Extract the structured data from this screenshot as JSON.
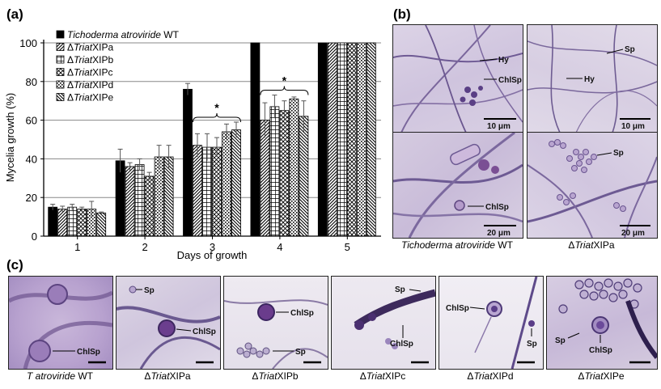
{
  "panels": {
    "a": "(a)",
    "b": "(b)",
    "c": "(c)"
  },
  "chart_data": {
    "type": "bar",
    "title": "",
    "xlabel": "Days of growth",
    "ylabel": "Mycelia growth (%)",
    "ylim": [
      0,
      100
    ],
    "yticks": [
      0,
      20,
      40,
      60,
      80,
      100
    ],
    "grid": true,
    "legend_position": "top-left",
    "categories": [
      "1",
      "2",
      "3",
      "4",
      "5"
    ],
    "series": [
      {
        "name_italic": "Tichoderma atroviride",
        "name_rest": " WT",
        "pattern": "solid",
        "values": [
          15,
          39,
          76,
          100,
          100
        ],
        "errors": [
          1.5,
          6,
          3,
          0,
          0
        ]
      },
      {
        "name_prefix": "Δ",
        "name_italic": "Triat",
        "name_rest": "XIPa",
        "pattern": "diag",
        "values": [
          14,
          36,
          47,
          60,
          100
        ],
        "errors": [
          1.5,
          2,
          6,
          9,
          0
        ]
      },
      {
        "name_prefix": "Δ",
        "name_italic": "Triat",
        "name_rest": "XIPb",
        "pattern": "grid",
        "values": [
          15,
          37,
          46,
          67,
          100
        ],
        "errors": [
          1.5,
          3,
          7,
          6,
          0
        ]
      },
      {
        "name_prefix": "Δ",
        "name_italic": "Triat",
        "name_rest": "XIPc",
        "pattern": "cross",
        "values": [
          14,
          31,
          46,
          65,
          100
        ],
        "errors": [
          1,
          2,
          5,
          5,
          0
        ]
      },
      {
        "name_prefix": "Δ",
        "name_italic": "Triat",
        "name_rest": "XIPd",
        "pattern": "dots",
        "values": [
          14,
          41,
          54,
          71,
          100
        ],
        "errors": [
          4,
          6,
          4,
          1,
          0
        ]
      },
      {
        "name_prefix": "Δ",
        "name_italic": "Triat",
        "name_rest": "XIPe",
        "pattern": "diag2",
        "values": [
          12,
          41,
          55,
          62,
          100
        ],
        "errors": [
          0.5,
          6,
          4,
          8,
          0
        ]
      }
    ],
    "annotations": [
      {
        "text": "*",
        "category": "3"
      },
      {
        "text": "*",
        "category": "4"
      }
    ]
  },
  "panel_b": {
    "images": [
      {
        "labels": [
          "Hy",
          "ChlSp"
        ],
        "scale": "10 μm"
      },
      {
        "labels": [
          "Sp",
          "Hy"
        ],
        "scale": "10 μm"
      },
      {
        "labels": [
          "ChlSp"
        ],
        "scale": "20 μm"
      },
      {
        "labels": [
          "Sp"
        ],
        "scale": "20 μm"
      }
    ],
    "captions": [
      {
        "italic": "Tichoderma atroviride",
        "rest": " WT"
      },
      {
        "prefix": "Δ",
        "italic": "Triat",
        "rest": "XIPa"
      }
    ]
  },
  "panel_c": {
    "images": [
      {
        "labels": [
          "ChlSp"
        ],
        "caption_italic": "T atroviride",
        "caption_rest": " WT",
        "caption_prefix": ""
      },
      {
        "labels": [
          "Sp",
          "ChlSp"
        ],
        "caption_prefix": "Δ",
        "caption_italic": "Triat",
        "caption_rest": "XIPa"
      },
      {
        "labels": [
          "ChlSp",
          "Sp"
        ],
        "caption_prefix": "Δ",
        "caption_italic": "Triat",
        "caption_rest": "XIPb"
      },
      {
        "labels": [
          "Sp",
          "ChlSp"
        ],
        "caption_prefix": "Δ",
        "caption_italic": "Triat",
        "caption_rest": "XIPc"
      },
      {
        "labels": [
          "ChlSp",
          "Sp"
        ],
        "caption_prefix": "Δ",
        "caption_italic": "Triat",
        "caption_rest": "XIPd"
      },
      {
        "labels": [
          "Sp",
          "ChlSp"
        ],
        "caption_prefix": "Δ",
        "caption_italic": "Triat",
        "caption_rest": "XIPe"
      }
    ]
  }
}
